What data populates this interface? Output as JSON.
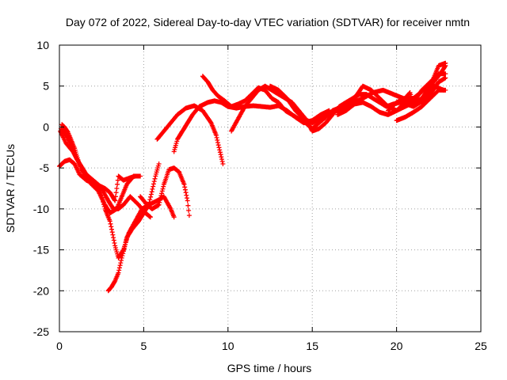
{
  "chart_data": {
    "type": "scatter",
    "title": "Day 072 of 2022, Sidereal Day-to-day VTEC variation (SDTVAR) for receiver nmtn",
    "xlabel": "GPS time / hours",
    "ylabel": "SDTVAR / TECUs",
    "xlim": [
      0,
      25
    ],
    "ylim": [
      -25,
      10
    ],
    "xticks": [
      0,
      5,
      10,
      15,
      20,
      25
    ],
    "yticks": [
      -25,
      -20,
      -15,
      -10,
      -5,
      0,
      5,
      10
    ],
    "grid": true,
    "marker": "plus",
    "color": "#ff0000",
    "series": [
      {
        "points": [
          [
            0.05,
            -0.5
          ],
          [
            0.4,
            -2.0
          ],
          [
            0.8,
            -3.0
          ],
          [
            1.2,
            -4.5
          ],
          [
            1.5,
            -6.0
          ],
          [
            1.9,
            -7.0
          ],
          [
            2.3,
            -7.8
          ],
          [
            2.7,
            -9.5
          ],
          [
            3.0,
            -10.5
          ],
          [
            3.4,
            -10.0
          ],
          [
            3.7,
            -8.5
          ],
          [
            4.0,
            -7.0
          ],
          [
            4.4,
            -6.0
          ],
          [
            4.8,
            -6.0
          ]
        ]
      },
      {
        "points": [
          [
            0.1,
            -0.2
          ],
          [
            0.4,
            -1.0
          ],
          [
            0.7,
            -2.2
          ],
          [
            1.0,
            -3.8
          ],
          [
            1.3,
            -4.8
          ],
          [
            1.6,
            -5.8
          ],
          [
            2.0,
            -6.6
          ],
          [
            2.4,
            -7.5
          ],
          [
            2.7,
            -10.0
          ],
          [
            3.0,
            -11.5
          ],
          [
            3.3,
            -14.5
          ],
          [
            3.5,
            -16.0
          ],
          [
            3.8,
            -15.0
          ],
          [
            4.1,
            -13.0
          ],
          [
            4.5,
            -11.5
          ],
          [
            4.9,
            -10.0
          ],
          [
            5.3,
            -9.5
          ],
          [
            5.8,
            -9.0
          ],
          [
            6.2,
            -8.5
          ],
          [
            6.6,
            -10.0
          ],
          [
            6.8,
            -11.0
          ]
        ]
      },
      {
        "points": [
          [
            0.0,
            -4.8
          ],
          [
            0.3,
            -4.2
          ],
          [
            0.6,
            -4.0
          ],
          [
            0.9,
            -4.5
          ],
          [
            1.2,
            -5.8
          ],
          [
            1.6,
            -6.5
          ],
          [
            2.1,
            -7.0
          ],
          [
            2.5,
            -7.5
          ],
          [
            2.9,
            -9.0
          ],
          [
            3.2,
            -10.0
          ],
          [
            3.5,
            -10.0
          ],
          [
            3.8,
            -9.5
          ],
          [
            4.2,
            -8.5
          ],
          [
            4.7,
            -9.5
          ],
          [
            5.1,
            -10.5
          ],
          [
            5.4,
            -11.0
          ]
        ]
      },
      {
        "points": [
          [
            0.15,
            0.3
          ],
          [
            0.3,
            0.0
          ],
          [
            0.5,
            -0.6
          ],
          [
            0.7,
            -1.6
          ],
          [
            0.9,
            -2.6
          ],
          [
            1.1,
            -4.0
          ],
          [
            1.3,
            -5.2
          ],
          [
            1.6,
            -5.8
          ],
          [
            2.0,
            -6.5
          ],
          [
            2.4,
            -7.2
          ],
          [
            2.7,
            -7.5
          ],
          [
            3.0,
            -8.0
          ],
          [
            3.3,
            -9.0
          ],
          [
            3.5,
            -6.0
          ],
          [
            3.8,
            -6.5
          ],
          [
            4.2,
            -6.2
          ],
          [
            4.5,
            -6.0
          ]
        ]
      },
      {
        "points": [
          [
            2.9,
            -20.0
          ],
          [
            3.1,
            -19.5
          ],
          [
            3.3,
            -18.8
          ],
          [
            3.5,
            -17.8
          ],
          [
            3.7,
            -16.0
          ],
          [
            4.0,
            -13.5
          ],
          [
            4.3,
            -12.5
          ],
          [
            4.7,
            -11.5
          ],
          [
            5.0,
            -10.5
          ],
          [
            5.3,
            -9.5
          ],
          [
            5.7,
            -6.0
          ],
          [
            5.9,
            -4.5
          ]
        ]
      },
      {
        "points": [
          [
            4.8,
            -8.5
          ],
          [
            5.2,
            -9.5
          ],
          [
            5.5,
            -10.0
          ],
          [
            5.9,
            -9.5
          ],
          [
            6.2,
            -7.0
          ],
          [
            6.5,
            -5.2
          ],
          [
            6.8,
            -5.0
          ],
          [
            7.1,
            -5.5
          ],
          [
            7.4,
            -7.0
          ],
          [
            7.6,
            -9.0
          ],
          [
            7.7,
            -10.8
          ]
        ]
      },
      {
        "points": [
          [
            5.8,
            -1.5
          ],
          [
            6.2,
            -0.5
          ],
          [
            6.6,
            0.5
          ],
          [
            7.0,
            1.5
          ],
          [
            7.5,
            2.3
          ],
          [
            8.0,
            2.6
          ],
          [
            8.5,
            2.0
          ],
          [
            9.0,
            0.5
          ],
          [
            9.3,
            -1.0
          ],
          [
            9.5,
            -2.8
          ],
          [
            9.7,
            -4.5
          ]
        ]
      },
      {
        "points": [
          [
            6.8,
            -3.0
          ],
          [
            7.0,
            -1.5
          ],
          [
            7.3,
            -0.5
          ],
          [
            7.6,
            0.5
          ],
          [
            7.9,
            1.5
          ],
          [
            8.3,
            2.5
          ],
          [
            8.8,
            3.0
          ],
          [
            9.2,
            3.2
          ],
          [
            9.6,
            3.0
          ],
          [
            10.0,
            2.5
          ],
          [
            10.5,
            2.3
          ],
          [
            11.0,
            2.5
          ],
          [
            11.5,
            2.6
          ],
          [
            12.0,
            2.5
          ],
          [
            12.5,
            2.4
          ],
          [
            13.0,
            2.6
          ],
          [
            13.5,
            2.0
          ],
          [
            14.0,
            1.2
          ],
          [
            14.5,
            0.5
          ],
          [
            15.0,
            0.8
          ],
          [
            15.5,
            1.5
          ],
          [
            16.0,
            2.0
          ]
        ]
      },
      {
        "points": [
          [
            8.5,
            6.2
          ],
          [
            8.8,
            5.5
          ],
          [
            9.1,
            4.5
          ],
          [
            9.4,
            3.8
          ],
          [
            9.8,
            3.2
          ],
          [
            10.2,
            2.5
          ],
          [
            10.6,
            2.8
          ],
          [
            11.0,
            3.2
          ],
          [
            11.4,
            4.0
          ],
          [
            11.8,
            4.8
          ],
          [
            12.2,
            4.5
          ],
          [
            12.6,
            3.5
          ],
          [
            13.0,
            3.0
          ],
          [
            13.4,
            2.0
          ],
          [
            13.8,
            1.5
          ],
          [
            14.2,
            1.0
          ],
          [
            14.6,
            0.5
          ],
          [
            15.0,
            -0.2
          ],
          [
            15.4,
            0.5
          ],
          [
            15.8,
            1.2
          ],
          [
            16.2,
            2.0
          ],
          [
            16.8,
            2.5
          ],
          [
            17.4,
            3.0
          ],
          [
            18.0,
            3.5
          ],
          [
            18.6,
            4.2
          ],
          [
            19.2,
            4.5
          ],
          [
            19.8,
            4.0
          ],
          [
            20.4,
            3.5
          ],
          [
            21.0,
            3.5
          ],
          [
            21.6,
            4.5
          ],
          [
            22.2,
            5.0
          ],
          [
            22.8,
            4.5
          ]
        ]
      },
      {
        "points": [
          [
            10.2,
            -0.5
          ],
          [
            10.6,
            1.0
          ],
          [
            11.0,
            2.5
          ],
          [
            11.4,
            3.5
          ],
          [
            11.8,
            4.5
          ],
          [
            12.2,
            5.0
          ],
          [
            12.6,
            4.5
          ],
          [
            13.0,
            4.0
          ],
          [
            13.4,
            3.5
          ],
          [
            13.8,
            3.0
          ],
          [
            14.2,
            2.0
          ],
          [
            14.6,
            1.0
          ],
          [
            15.0,
            -0.5
          ],
          [
            15.4,
            -0.2
          ],
          [
            15.8,
            0.5
          ],
          [
            16.2,
            1.5
          ],
          [
            16.6,
            2.5
          ],
          [
            17.0,
            3.0
          ],
          [
            17.4,
            3.5
          ],
          [
            17.8,
            4.0
          ],
          [
            18.2,
            4.0
          ],
          [
            18.6,
            3.5
          ],
          [
            19.0,
            3.0
          ],
          [
            19.4,
            2.5
          ],
          [
            19.8,
            2.8
          ],
          [
            20.2,
            3.0
          ],
          [
            20.6,
            2.8
          ],
          [
            21.0,
            2.5
          ],
          [
            21.4,
            3.0
          ],
          [
            21.8,
            4.0
          ],
          [
            22.2,
            5.5
          ],
          [
            22.6,
            6.5
          ],
          [
            22.9,
            7.5
          ]
        ]
      },
      {
        "points": [
          [
            12.5,
            5.0
          ],
          [
            13.0,
            4.5
          ],
          [
            13.5,
            3.5
          ],
          [
            14.0,
            2.0
          ],
          [
            14.5,
            1.0
          ],
          [
            15.0,
            0.5
          ],
          [
            15.5,
            1.0
          ],
          [
            16.0,
            1.8
          ],
          [
            16.5,
            2.0
          ],
          [
            17.0,
            2.5
          ],
          [
            17.5,
            3.5
          ],
          [
            18.0,
            5.0
          ],
          [
            18.5,
            4.5
          ],
          [
            19.0,
            3.5
          ],
          [
            19.5,
            2.5
          ],
          [
            20.0,
            2.0
          ],
          [
            20.5,
            2.5
          ],
          [
            21.0,
            3.0
          ],
          [
            21.5,
            4.5
          ],
          [
            22.0,
            5.5
          ],
          [
            22.5,
            6.5
          ],
          [
            22.9,
            6.5
          ]
        ]
      },
      {
        "points": [
          [
            16.5,
            1.5
          ],
          [
            17.0,
            2.0
          ],
          [
            17.5,
            2.8
          ],
          [
            18.0,
            3.0
          ],
          [
            18.5,
            2.5
          ],
          [
            19.0,
            1.8
          ],
          [
            19.5,
            1.5
          ],
          [
            20.0,
            2.0
          ],
          [
            20.5,
            3.0
          ],
          [
            21.0,
            3.5
          ],
          [
            21.5,
            3.0
          ],
          [
            22.0,
            4.0
          ],
          [
            22.5,
            5.5
          ],
          [
            22.9,
            6.0
          ]
        ]
      },
      {
        "points": [
          [
            19.5,
            2.0
          ],
          [
            20.0,
            3.0
          ],
          [
            20.5,
            3.5
          ],
          [
            20.8,
            4.2
          ],
          [
            21.0,
            2.8
          ],
          [
            21.5,
            3.5
          ],
          [
            22.0,
            5.0
          ],
          [
            22.5,
            7.5
          ],
          [
            22.9,
            7.8
          ]
        ]
      },
      {
        "points": [
          [
            20.0,
            0.8
          ],
          [
            20.5,
            1.2
          ],
          [
            21.0,
            1.8
          ],
          [
            21.5,
            2.5
          ],
          [
            22.0,
            3.5
          ],
          [
            22.5,
            4.5
          ],
          [
            22.9,
            4.5
          ]
        ]
      }
    ]
  }
}
